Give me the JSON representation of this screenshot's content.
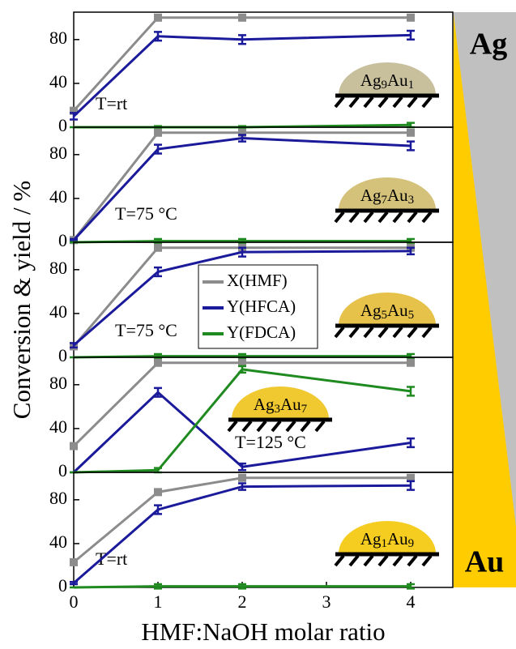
{
  "figure": {
    "xlabel": "HMF:NaOH molar ratio",
    "ylabel": "Conversion & yield / %",
    "gradient_top": "Ag",
    "gradient_bottom": "Au",
    "gradient_colors": [
      "#c0c0c0",
      "#ffcc00"
    ]
  },
  "chart_data": [
    {
      "type": "line",
      "x": [
        0,
        1,
        2,
        4
      ],
      "xlim": [
        0,
        4.5
      ],
      "ylim": [
        0,
        105
      ],
      "yticks": [
        0,
        40,
        80
      ],
      "annotation": "T=rt",
      "sample": [
        "Ag",
        "9",
        "Au",
        "1"
      ],
      "sample_color": "#c8c09c",
      "series": [
        {
          "name": "X(HMF)",
          "color": "#8c8c8c",
          "values": [
            15,
            100,
            100,
            100
          ]
        },
        {
          "name": "Y(HFCA)",
          "color": "#1a1a9a",
          "values": [
            10,
            83,
            80,
            84
          ],
          "errors": [
            3,
            4,
            4,
            4
          ]
        },
        {
          "name": "Y(FDCA)",
          "color": "#1f8a1f",
          "values": [
            0,
            0,
            0,
            2
          ],
          "errors": [
            0,
            1,
            1,
            2
          ]
        }
      ]
    },
    {
      "type": "line",
      "x": [
        0,
        1,
        2,
        4
      ],
      "xlim": [
        0,
        4.5
      ],
      "ylim": [
        0,
        105
      ],
      "yticks": [
        0,
        40,
        80
      ],
      "annotation": "T=75 °C",
      "sample": [
        "Ag",
        "7",
        "Au",
        "3"
      ],
      "sample_color": "#d4c27a",
      "series": [
        {
          "name": "X(HMF)",
          "color": "#8c8c8c",
          "values": [
            2,
            100,
            100,
            100
          ]
        },
        {
          "name": "Y(HFCA)",
          "color": "#1a1a9a",
          "values": [
            2,
            85,
            95,
            88
          ],
          "errors": [
            1,
            4,
            3,
            4
          ]
        },
        {
          "name": "Y(FDCA)",
          "color": "#1f8a1f",
          "values": [
            0,
            1,
            1,
            1
          ],
          "errors": [
            0,
            2,
            2,
            2
          ]
        }
      ]
    },
    {
      "type": "line",
      "x": [
        0,
        1,
        2,
        4
      ],
      "xlim": [
        0,
        4.5
      ],
      "ylim": [
        0,
        105
      ],
      "yticks": [
        0,
        40,
        80
      ],
      "annotation": "T=75 °C",
      "sample": [
        "Ag",
        "5",
        "Au",
        "5"
      ],
      "sample_color": "#e6c24a",
      "legend": "center",
      "series": [
        {
          "name": "X(HMF)",
          "color": "#8c8c8c",
          "values": [
            10,
            100,
            100,
            100
          ]
        },
        {
          "name": "Y(HFCA)",
          "color": "#1a1a9a",
          "values": [
            11,
            78,
            96,
            97
          ],
          "errors": [
            2,
            4,
            4,
            3
          ]
        },
        {
          "name": "Y(FDCA)",
          "color": "#1f8a1f",
          "values": [
            0,
            1,
            1,
            1
          ],
          "errors": [
            0,
            2,
            2,
            2
          ]
        }
      ]
    },
    {
      "type": "line",
      "x": [
        0,
        1,
        2,
        4
      ],
      "xlim": [
        0,
        4.5
      ],
      "ylim": [
        0,
        105
      ],
      "yticks": [
        0,
        40,
        80
      ],
      "annotation": "T=125 °C",
      "sample": [
        "Ag",
        "3",
        "Au",
        "7"
      ],
      "sample_color": "#f0c830",
      "series": [
        {
          "name": "X(HMF)",
          "color": "#8c8c8c",
          "values": [
            24,
            100,
            100,
            100
          ]
        },
        {
          "name": "Y(HFCA)",
          "color": "#1a1a9a",
          "values": [
            0,
            73,
            5,
            27
          ],
          "errors": [
            0,
            4,
            3,
            4
          ]
        },
        {
          "name": "Y(FDCA)",
          "color": "#1f8a1f",
          "values": [
            0,
            2,
            94,
            74
          ],
          "errors": [
            0,
            2,
            3,
            4
          ]
        }
      ]
    },
    {
      "type": "line",
      "x": [
        0,
        1,
        2,
        4
      ],
      "xlim": [
        0,
        4.5
      ],
      "ylim": [
        0,
        105
      ],
      "yticks": [
        0,
        40,
        80
      ],
      "xticks": [
        0,
        1,
        2,
        3,
        4
      ],
      "annotation": "T=rt",
      "sample": [
        "Ag",
        "1",
        "Au",
        "9"
      ],
      "sample_color": "#f5cc20",
      "series": [
        {
          "name": "X(HMF)",
          "color": "#8c8c8c",
          "values": [
            23,
            87,
            100,
            100
          ]
        },
        {
          "name": "Y(HFCA)",
          "color": "#1a1a9a",
          "values": [
            4,
            71,
            92,
            93
          ],
          "errors": [
            1,
            4,
            3,
            4
          ]
        },
        {
          "name": "Y(FDCA)",
          "color": "#1f8a1f",
          "values": [
            0,
            1,
            1,
            1
          ],
          "errors": [
            0,
            2,
            2,
            2
          ]
        }
      ]
    }
  ]
}
